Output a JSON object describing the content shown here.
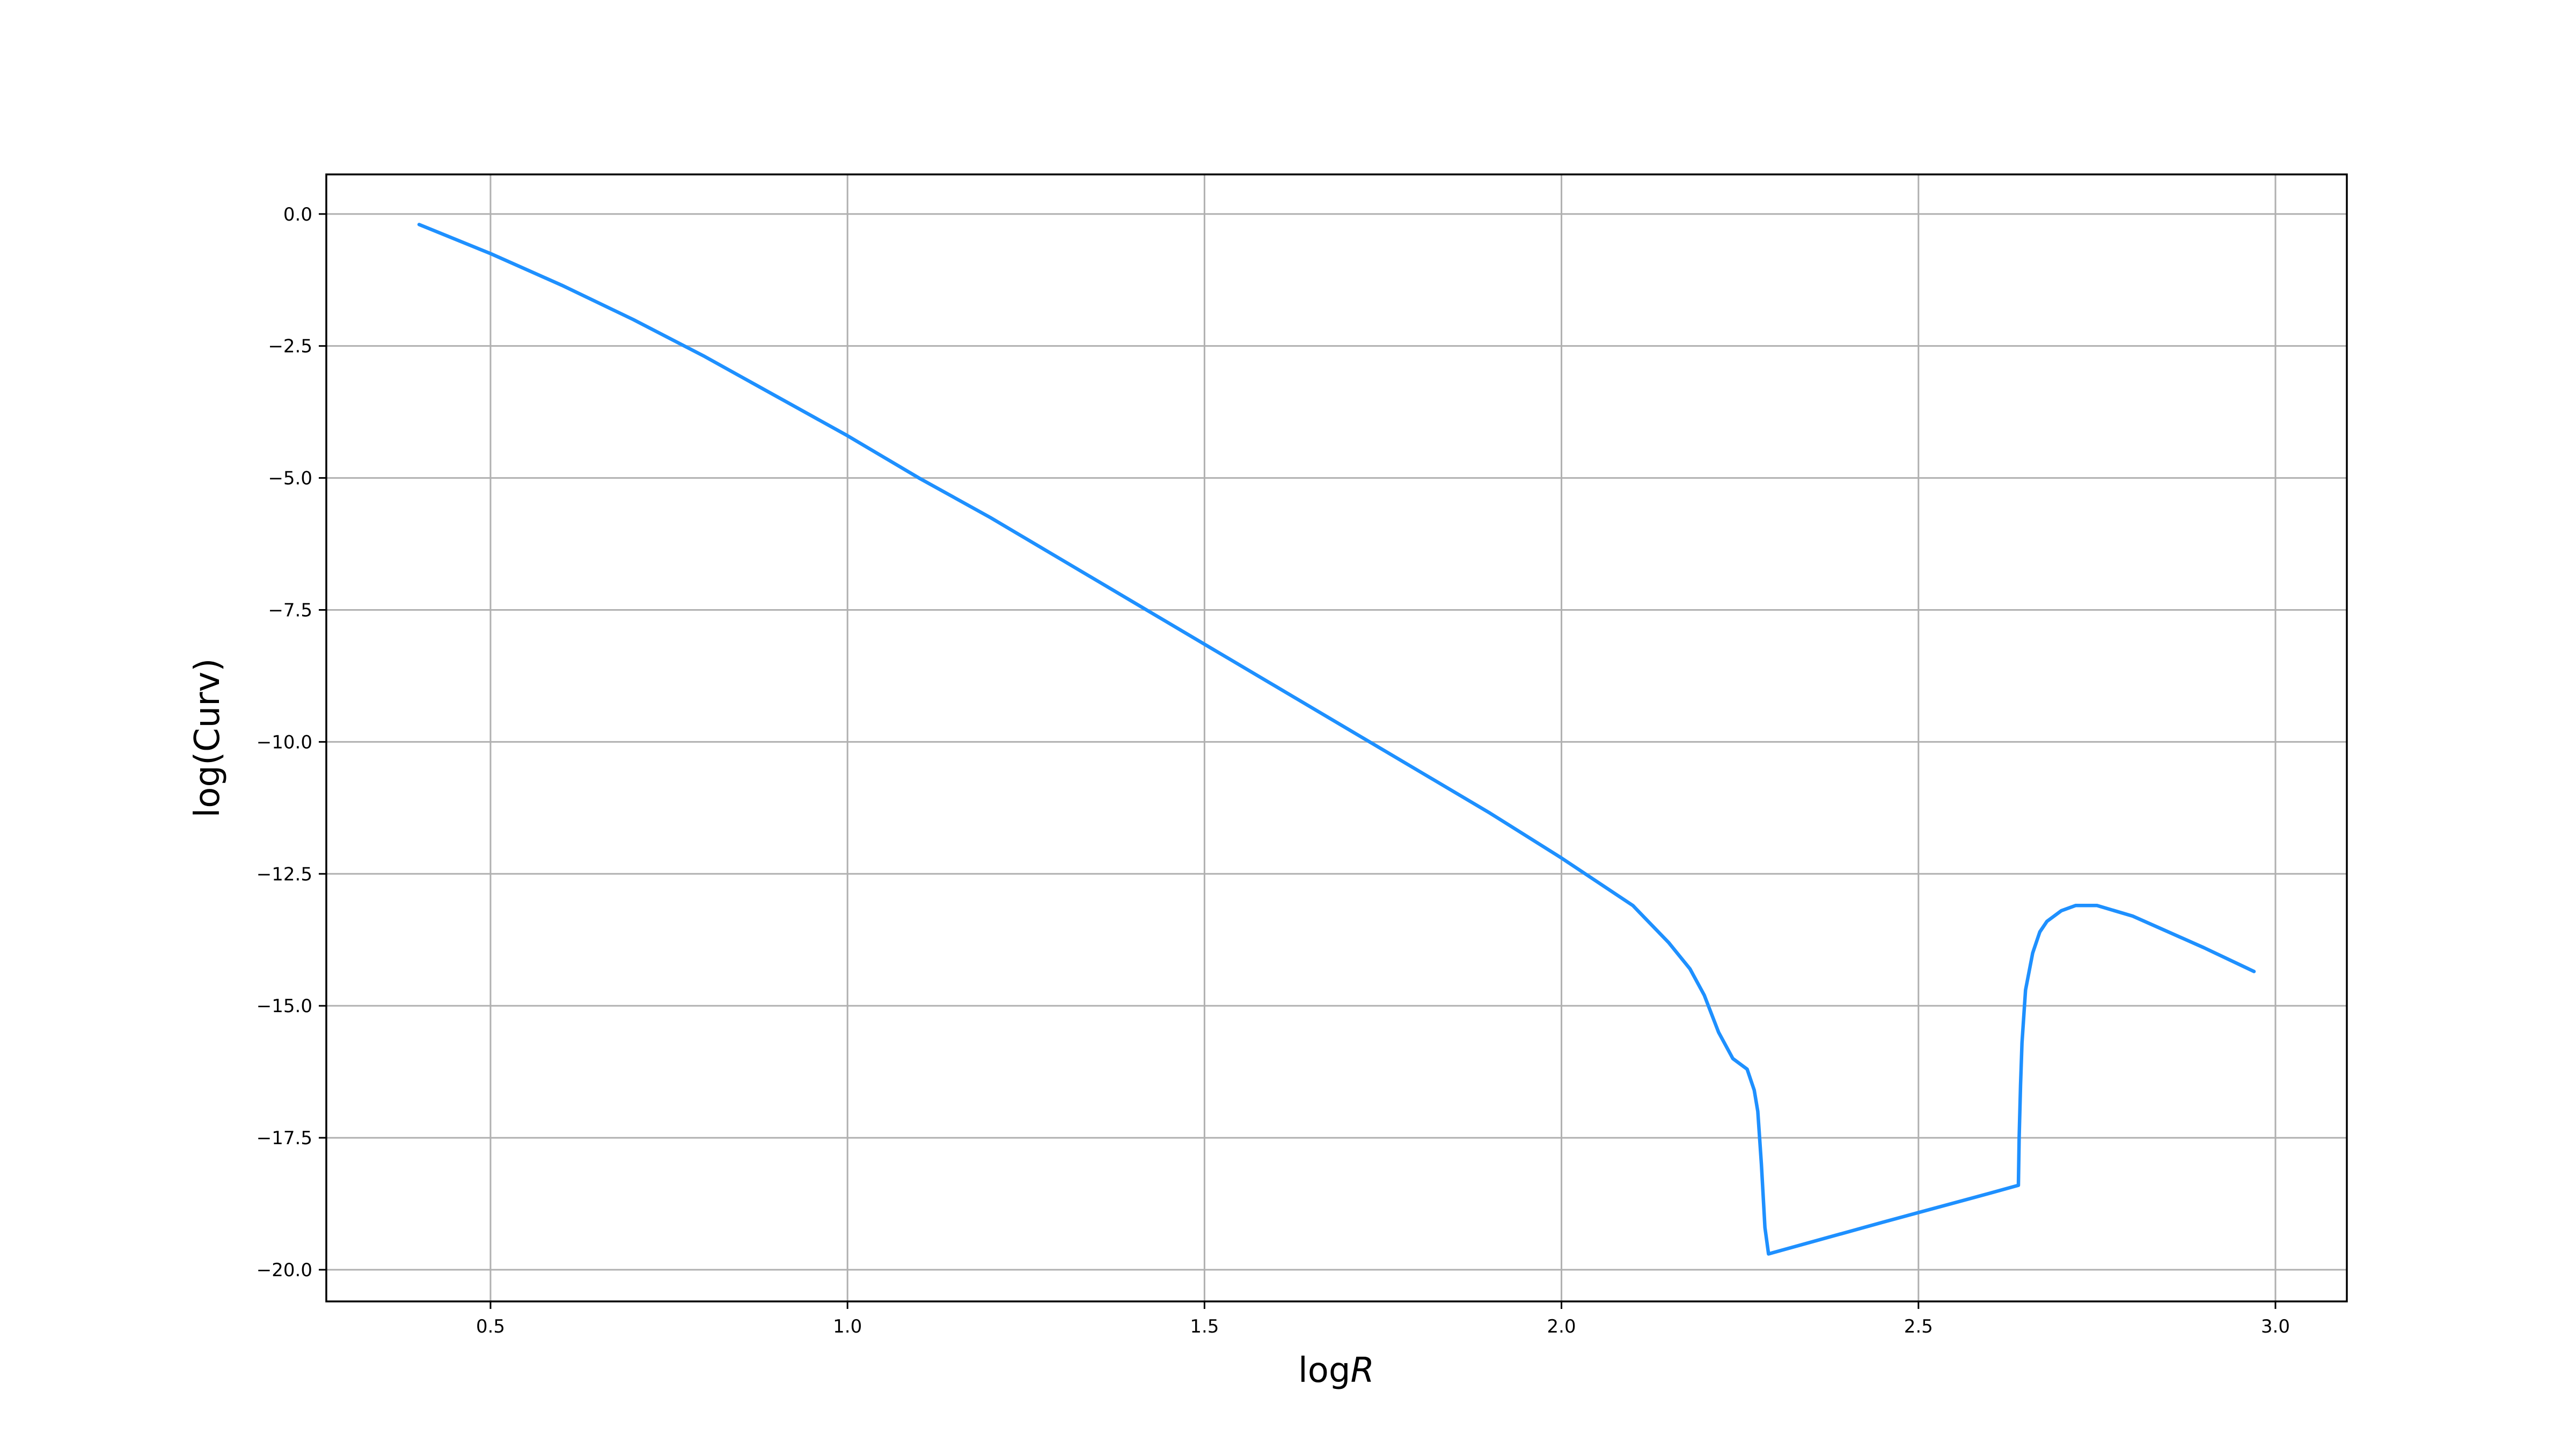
{
  "chart_data": {
    "type": "line",
    "xlabel_prefix": "log",
    "xlabel_var": "R",
    "ylabel": "log(Curv)",
    "xlim": [
      0.27,
      3.1
    ],
    "ylim": [
      -20.6,
      0.75
    ],
    "grid": true,
    "x_ticks": [
      0.5,
      1.0,
      1.5,
      2.0,
      2.5,
      3.0
    ],
    "x_tick_labels": [
      "0.5",
      "1.0",
      "1.5",
      "2.0",
      "2.5",
      "3.0"
    ],
    "y_ticks": [
      0.0,
      -2.5,
      -5.0,
      -7.5,
      -10.0,
      -12.5,
      -15.0,
      -17.5,
      -20.0
    ],
    "y_tick_labels": [
      "0.0",
      "−2.5",
      "−5.0",
      "−7.5",
      "−10.0",
      "−12.5",
      "−15.0",
      "−17.5",
      "−20.0"
    ],
    "series": [
      {
        "color": "#1e90ff",
        "x": [
          0.4,
          0.5,
          0.6,
          0.7,
          0.8,
          0.9,
          1.0,
          1.1,
          1.2,
          1.3,
          1.4,
          1.5,
          1.6,
          1.7,
          1.8,
          1.9,
          2.0,
          2.1,
          2.15,
          2.18,
          2.2,
          2.22,
          2.24,
          2.25,
          2.26,
          2.27,
          2.275,
          2.28,
          2.285,
          2.29,
          2.45,
          2.6,
          2.64,
          2.641,
          2.643,
          2.645,
          2.65,
          2.66,
          2.67,
          2.68,
          2.7,
          2.72,
          2.75,
          2.8,
          2.85,
          2.9,
          2.97
        ],
        "y": [
          -0.2,
          -0.75,
          -1.35,
          -2.0,
          -2.7,
          -3.45,
          -4.2,
          -5.0,
          -5.75,
          -6.55,
          -7.35,
          -8.15,
          -8.95,
          -9.75,
          -10.55,
          -11.35,
          -12.2,
          -13.1,
          -13.8,
          -14.3,
          -14.8,
          -15.5,
          -16.0,
          -16.1,
          -16.2,
          -16.6,
          -17.0,
          -18.0,
          -19.2,
          -19.7,
          -19.1,
          -18.55,
          -18.4,
          -17.5,
          -16.5,
          -15.7,
          -14.7,
          -14.0,
          -13.6,
          -13.4,
          -13.2,
          -13.1,
          -13.1,
          -13.3,
          -13.6,
          -13.9,
          -14.35
        ]
      }
    ]
  }
}
